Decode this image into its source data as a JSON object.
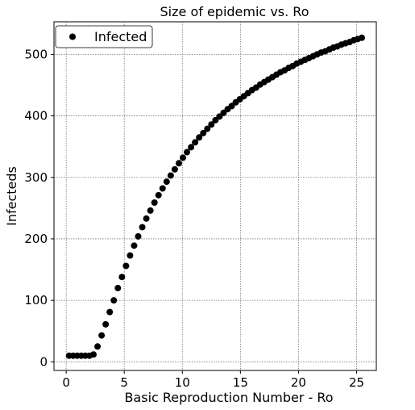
{
  "chart_data": {
    "type": "scatter",
    "title": "Size of epidemic vs. Ro",
    "xlabel": "Basic Reproduction Number - Ro",
    "ylabel": "Infecteds",
    "xlim": [
      -1.05,
      26.7
    ],
    "ylim": [
      -14,
      553
    ],
    "xticks": [
      0,
      5,
      10,
      15,
      20,
      25
    ],
    "yticks": [
      0,
      100,
      200,
      300,
      400,
      500
    ],
    "xtick_labels": [
      "0",
      "5",
      "10",
      "15",
      "20",
      "25"
    ],
    "ytick_labels": [
      "0",
      "100",
      "200",
      "300",
      "400",
      "500"
    ],
    "grid": true,
    "legend_position": "top-left",
    "marker_color": "#000000",
    "series": [
      {
        "name": "Infected",
        "x": [
          0.25,
          0.6,
          0.95,
          1.3,
          1.65,
          2.0,
          2.35,
          2.7,
          3.05,
          3.4,
          3.75,
          4.1,
          4.45,
          4.8,
          5.15,
          5.5,
          5.85,
          6.2,
          6.55,
          6.9,
          7.25,
          7.6,
          7.95,
          8.3,
          8.65,
          9.0,
          9.35,
          9.7,
          10.05,
          10.4,
          10.75,
          11.1,
          11.45,
          11.8,
          12.15,
          12.5,
          12.85,
          13.2,
          13.55,
          13.9,
          14.25,
          14.6,
          14.95,
          15.3,
          15.65,
          16.0,
          16.35,
          16.7,
          17.05,
          17.4,
          17.75,
          18.1,
          18.45,
          18.8,
          19.15,
          19.5,
          19.85,
          20.2,
          20.55,
          20.9,
          21.25,
          21.6,
          21.95,
          22.3,
          22.65,
          23.0,
          23.35,
          23.7,
          24.05,
          24.4,
          24.75,
          25.1,
          25.45
        ],
        "y": [
          10,
          10,
          10,
          10,
          10,
          10,
          12,
          25,
          43,
          61,
          81,
          100,
          120,
          138,
          156,
          173,
          189,
          204,
          219,
          233,
          246,
          259,
          271,
          282,
          293,
          303,
          313,
          323,
          332,
          341,
          349,
          357,
          365,
          372,
          379,
          386,
          393,
          399,
          405,
          411,
          416,
          422,
          427,
          432,
          437,
          442,
          446,
          451,
          455,
          459,
          463,
          467,
          471,
          474,
          478,
          481,
          485,
          488,
          491,
          494,
          497,
          500,
          503,
          505,
          508,
          511,
          513,
          516,
          518,
          520,
          523,
          525,
          527
        ]
      }
    ]
  }
}
